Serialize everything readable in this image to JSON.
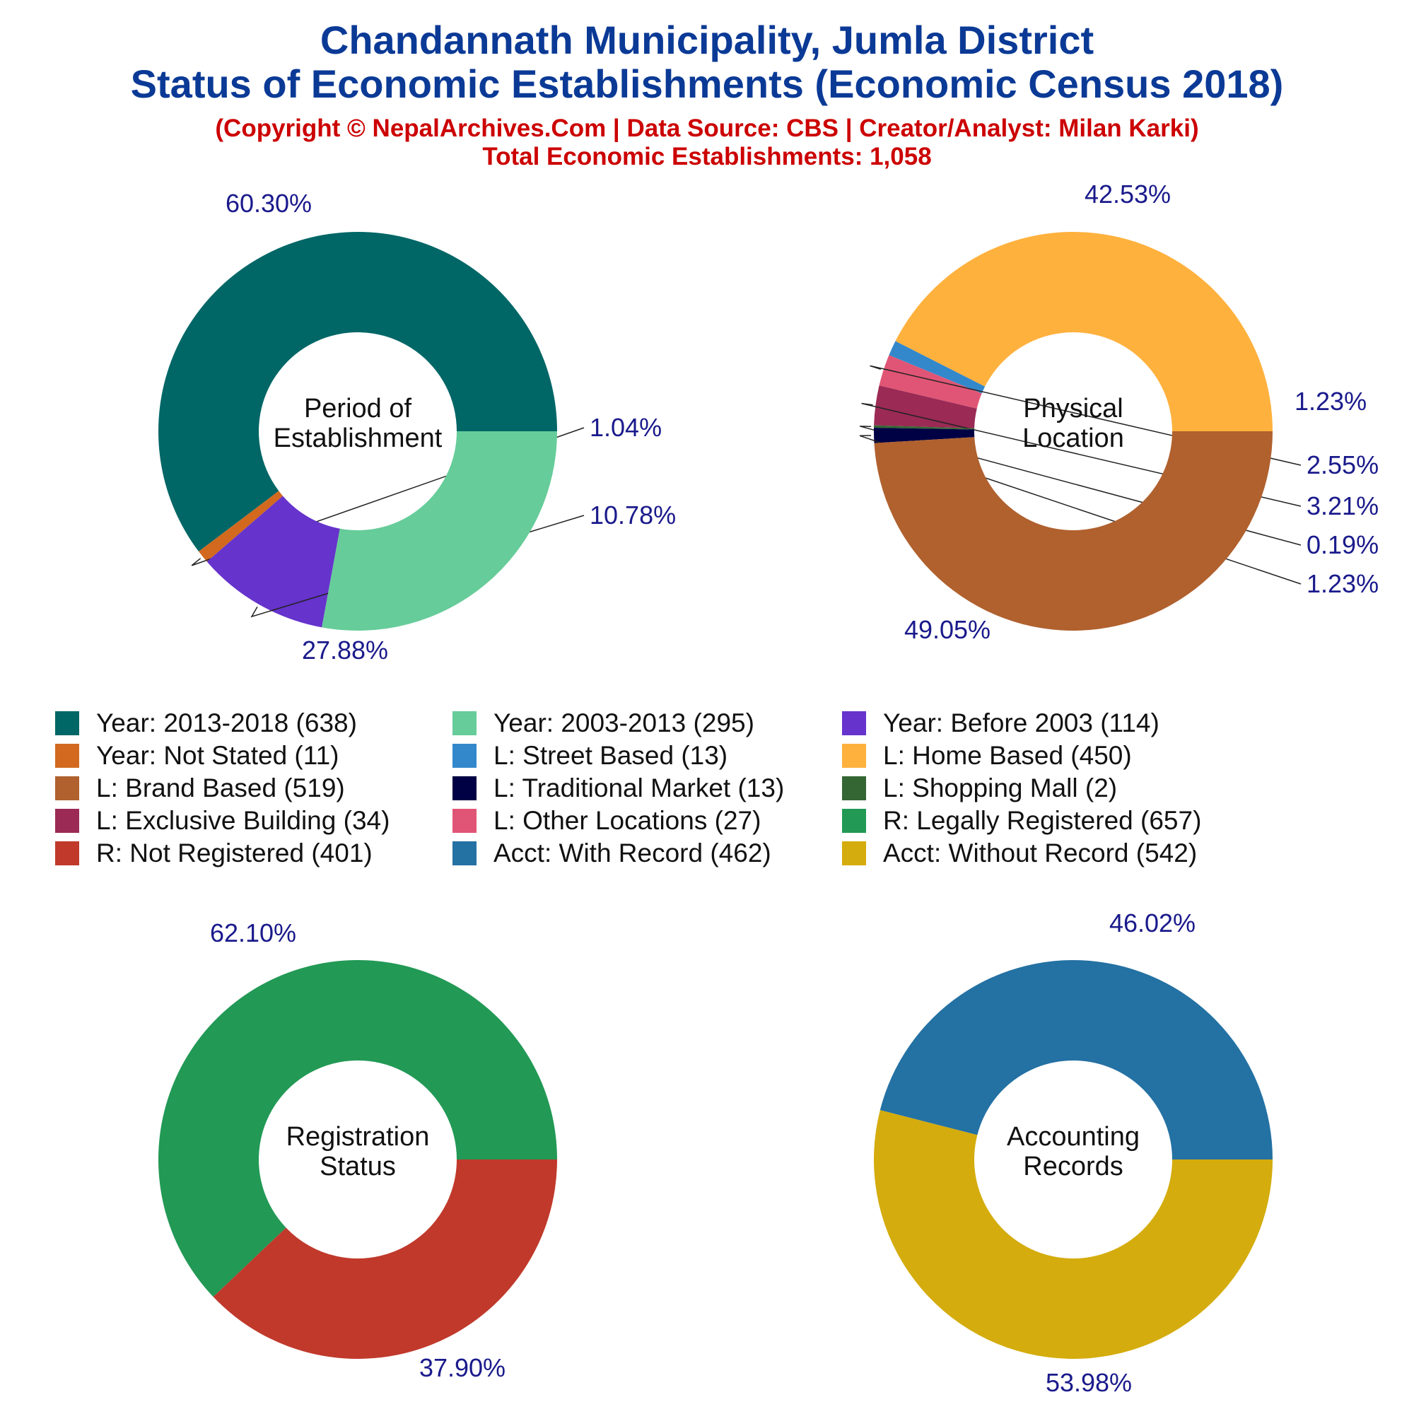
{
  "header": {
    "title_line1": "Chandannath Municipality, Jumla District",
    "title_line2": "Status of Economic Establishments (Economic Census 2018)",
    "credit": "(Copyright © NepalArchives.Com | Data Source: CBS | Creator/Analyst: Milan Karki)",
    "total": "Total Economic Establishments: 1,058"
  },
  "colors": {
    "title": "#0b3a96",
    "subtitle": "#cc0000",
    "slice_label": "#1a1a8c"
  },
  "chart_data": [
    {
      "type": "pie",
      "title": "Period of Establishment",
      "center_label": [
        "Period of",
        "Establishment"
      ],
      "slices": [
        {
          "category": "Year: 2013-2018",
          "value": 638,
          "percent_label": "60.30%",
          "color": "#006666"
        },
        {
          "category": "Year: Not Stated",
          "value": 11,
          "percent_label": "1.04%",
          "color": "#d2691e"
        },
        {
          "category": "Year: Before 2003",
          "value": 114,
          "percent_label": "10.78%",
          "color": "#6633cc"
        },
        {
          "category": "Year: 2003-2013",
          "value": 295,
          "percent_label": "27.88%",
          "color": "#66cc99"
        }
      ]
    },
    {
      "type": "pie",
      "title": "Physical Location",
      "center_label": [
        "Physical",
        "Location"
      ],
      "slices": [
        {
          "category": "L: Home Based",
          "value": 450,
          "percent_label": "42.53%",
          "color": "#ffb13d"
        },
        {
          "category": "L: Street Based",
          "value": 13,
          "percent_label": "1.23%",
          "color": "#3388cc"
        },
        {
          "category": "L: Other Locations",
          "value": 27,
          "percent_label": "2.55%",
          "color": "#e05575"
        },
        {
          "category": "L: Exclusive Building",
          "value": 34,
          "percent_label": "3.21%",
          "color": "#9b2a55"
        },
        {
          "category": "L: Shopping Mall",
          "value": 2,
          "percent_label": "0.19%",
          "color": "#336633"
        },
        {
          "category": "L: Traditional Market",
          "value": 13,
          "percent_label": "1.23%",
          "color": "#000044"
        },
        {
          "category": "L: Brand Based",
          "value": 519,
          "percent_label": "49.05%",
          "color": "#b0612e"
        }
      ]
    },
    {
      "type": "pie",
      "title": "Registration Status",
      "center_label": [
        "Registration",
        "Status"
      ],
      "slices": [
        {
          "category": "R: Legally Registered",
          "value": 657,
          "percent_label": "62.10%",
          "color": "#229955"
        },
        {
          "category": "R: Not Registered",
          "value": 401,
          "percent_label": "37.90%",
          "color": "#c0392b"
        }
      ]
    },
    {
      "type": "pie",
      "title": "Accounting Records",
      "center_label": [
        "Accounting",
        "Records"
      ],
      "slices": [
        {
          "category": "Acct: With Record",
          "value": 462,
          "percent_label": "46.02%",
          "color": "#2471a3"
        },
        {
          "category": "Acct: Without Record",
          "value": 542,
          "percent_label": "53.98%",
          "color": "#d4ac0d"
        }
      ]
    }
  ],
  "legend": [
    {
      "label": "Year: 2013-2018 (638)",
      "color": "#006666"
    },
    {
      "label": "Year: 2003-2013 (295)",
      "color": "#66cc99"
    },
    {
      "label": "Year: Before 2003 (114)",
      "color": "#6633cc"
    },
    {
      "label": "Year: Not Stated (11)",
      "color": "#d2691e"
    },
    {
      "label": "L: Street Based (13)",
      "color": "#3388cc"
    },
    {
      "label": "L: Home Based (450)",
      "color": "#ffb13d"
    },
    {
      "label": "L: Brand Based (519)",
      "color": "#b0612e"
    },
    {
      "label": "L: Traditional Market (13)",
      "color": "#000044"
    },
    {
      "label": "L: Shopping Mall (2)",
      "color": "#336633"
    },
    {
      "label": "L: Exclusive Building (34)",
      "color": "#9b2a55"
    },
    {
      "label": "L: Other Locations (27)",
      "color": "#e05575"
    },
    {
      "label": "R: Legally Registered (657)",
      "color": "#229955"
    },
    {
      "label": "R: Not Registered (401)",
      "color": "#c0392b"
    },
    {
      "label": "Acct: With Record (462)",
      "color": "#2471a3"
    },
    {
      "label": "Acct: Without Record (542)",
      "color": "#d4ac0d"
    }
  ]
}
